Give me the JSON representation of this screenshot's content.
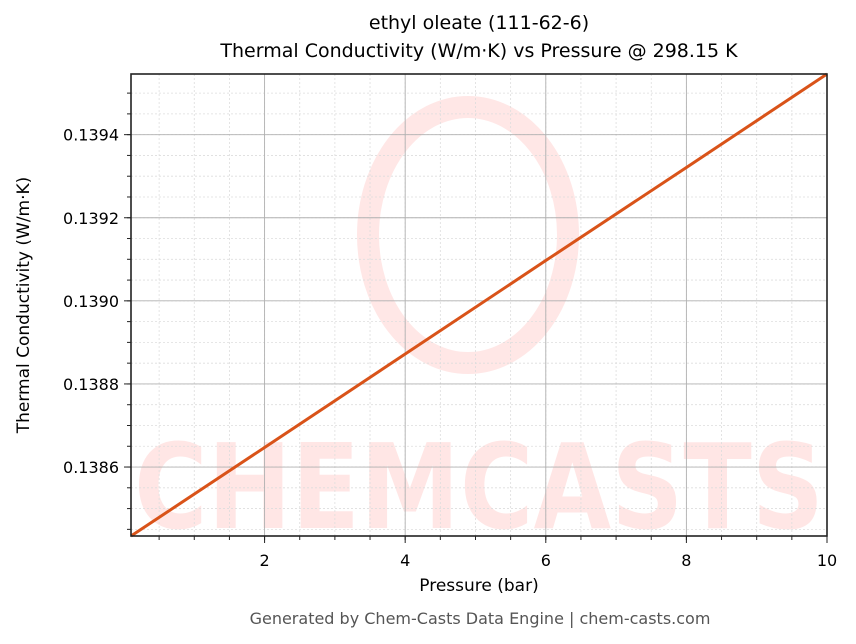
{
  "chart_data": {
    "type": "line",
    "title": "ethyl oleate (111-62-6)",
    "subtitle": "Thermal Conductivity (W/m·K) vs Pressure @ 298.15 K",
    "xlabel": "Pressure (bar)",
    "ylabel": "Thermal Conductivity (W/m·K)",
    "xlim": [
      0.1,
      10
    ],
    "ylim": [
      0.138434,
      0.139546
    ],
    "x_ticks": [
      2,
      4,
      6,
      8,
      10
    ],
    "x_tick_labels": [
      "2",
      "4",
      "6",
      "8",
      "10"
    ],
    "y_ticks": [
      0.1386,
      0.1388,
      0.139,
      0.1392,
      0.1394
    ],
    "y_tick_labels": [
      "0.1386",
      "0.1388",
      "0.1390",
      "0.1392",
      "0.1394"
    ],
    "grid": true,
    "series": [
      {
        "name": "Thermal Conductivity",
        "color": "#d95319",
        "x": [
          0.1,
          2,
          4,
          6,
          8,
          10
        ],
        "values": [
          0.138434,
          0.138647,
          0.138872,
          0.139097,
          0.139321,
          0.139546
        ]
      }
    ],
    "watermark": "CHEMCASTS"
  },
  "footer": "Generated by Chem-Casts Data Engine | chem-casts.com"
}
